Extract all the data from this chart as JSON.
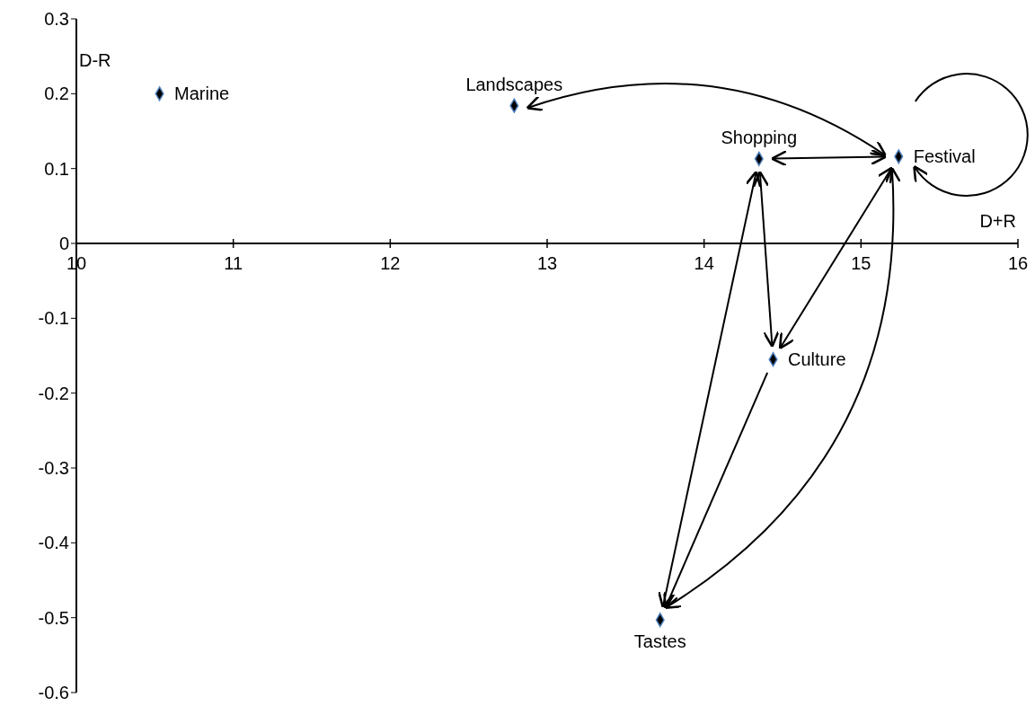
{
  "chart_data": {
    "type": "scatter",
    "xlabel": "D+R",
    "ylabel": "D-R",
    "series": [
      {
        "name": "Marine",
        "color": "#000000",
        "x": [
          10.53
        ],
        "values": [
          0.2
        ]
      },
      {
        "name": "Landscapes",
        "color": "#000000",
        "x": [
          12.79
        ],
        "values": [
          0.184
        ]
      },
      {
        "name": "Shopping",
        "color": "#000000",
        "x": [
          14.35
        ],
        "values": [
          0.113
        ]
      },
      {
        "name": "Festival",
        "color": "#000000",
        "x": [
          15.24
        ],
        "values": [
          0.116
        ]
      },
      {
        "name": "Culture",
        "color": "#000000",
        "x": [
          14.44
        ],
        "values": [
          -0.155
        ]
      },
      {
        "name": "Tastes",
        "color": "#000000",
        "x": [
          13.72
        ],
        "values": [
          -0.503
        ]
      }
    ],
    "xlim": [
      10,
      16
    ],
    "xticks": [
      10,
      11,
      12,
      13,
      14,
      15,
      16
    ],
    "ylim": [
      -0.6,
      0.3
    ],
    "yticks": [
      -0.6,
      -0.5,
      -0.4,
      -0.3,
      -0.2,
      -0.1,
      0,
      0.1,
      0.2,
      0.3
    ],
    "marker": "diamond",
    "grid": false,
    "legend": false
  }
}
